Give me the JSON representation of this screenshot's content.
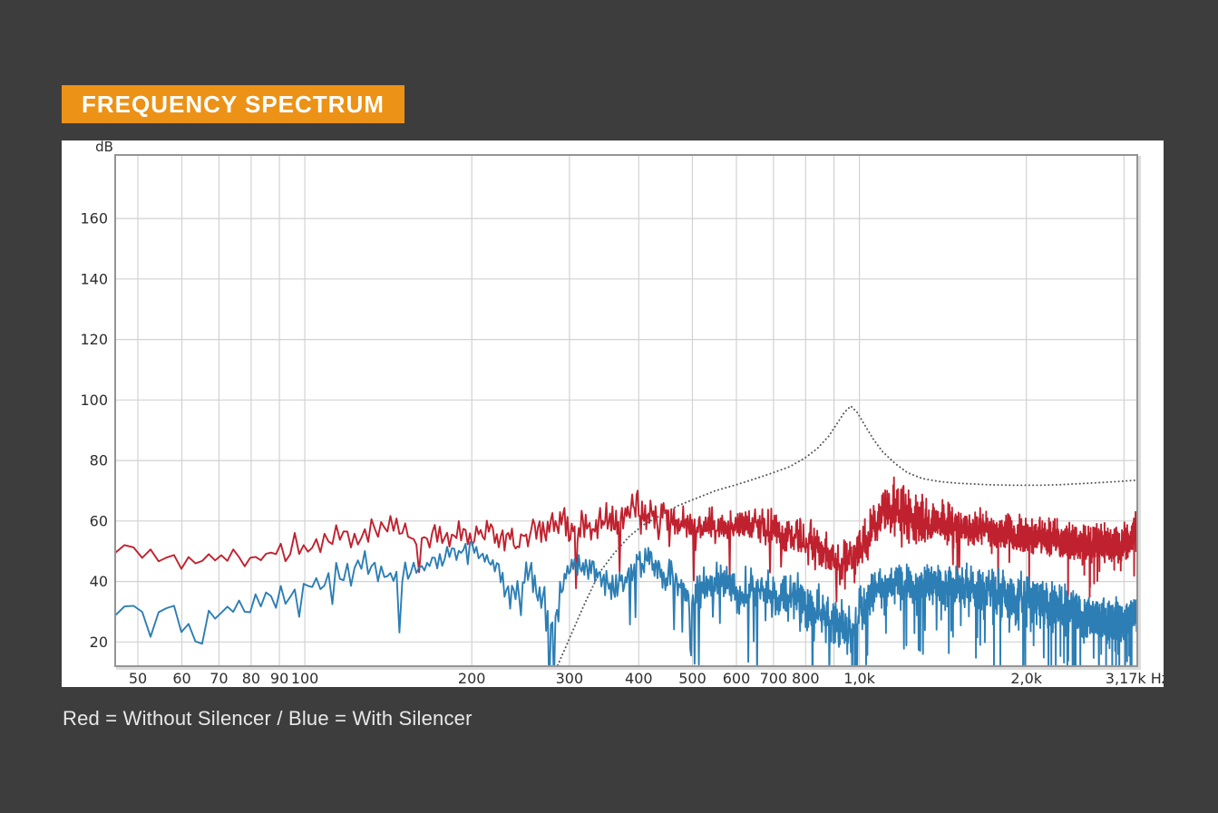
{
  "page": {
    "background": "#3d3d3d"
  },
  "header": {
    "title": "FREQUENCY SPECTRUM",
    "bg": "#ec9217",
    "text_color": "#ffffff"
  },
  "caption": {
    "text": "Red = Without Silencer / Blue = With Silencer"
  },
  "chart_data": {
    "type": "line",
    "title": "Frequency Spectrum",
    "grid": true,
    "legend_position": "below-as-caption",
    "colors": {
      "grid": "#d2d2d2",
      "spine": "#949494",
      "tick_text": "#2e2e2e",
      "plot_bg": "#ffffff"
    },
    "x_axis": {
      "scale": "log",
      "unit": "Hz",
      "min": 45.5,
      "max": 3170,
      "gridlines": [
        50,
        60,
        70,
        80,
        90,
        100,
        200,
        300,
        400,
        500,
        600,
        700,
        800,
        900,
        1000,
        2000,
        3000
      ],
      "ticks": [
        {
          "f": 50,
          "label": "50"
        },
        {
          "f": 60,
          "label": "60"
        },
        {
          "f": 70,
          "label": "70"
        },
        {
          "f": 80,
          "label": "80"
        },
        {
          "f": 90,
          "label": "90"
        },
        {
          "f": 100,
          "label": "100"
        },
        {
          "f": 200,
          "label": "200"
        },
        {
          "f": 300,
          "label": "300"
        },
        {
          "f": 400,
          "label": "400"
        },
        {
          "f": 500,
          "label": "500"
        },
        {
          "f": 600,
          "label": "600"
        },
        {
          "f": 700,
          "label": "700"
        },
        {
          "f": 800,
          "label": "800"
        },
        {
          "f": 1000,
          "label": "1,0k"
        },
        {
          "f": 2000,
          "label": "2,0k"
        },
        {
          "f": 3170,
          "label": "3,17k Hz"
        }
      ]
    },
    "y_axis": {
      "unit": "dB",
      "min": 12,
      "max": 181,
      "ticks": [
        20,
        40,
        60,
        80,
        100,
        120,
        140,
        160
      ]
    },
    "series": [
      {
        "name": "resonance-curve",
        "legend": "",
        "color": "#5b5b5b",
        "style": "dotted",
        "points": [
          [
            282,
            10
          ],
          [
            295,
            18
          ],
          [
            308,
            26
          ],
          [
            322,
            34
          ],
          [
            340,
            43
          ],
          [
            360,
            49
          ],
          [
            385,
            55
          ],
          [
            410,
            59
          ],
          [
            440,
            62
          ],
          [
            470,
            65
          ],
          [
            500,
            67
          ],
          [
            550,
            70
          ],
          [
            600,
            72
          ],
          [
            650,
            74
          ],
          [
            700,
            76
          ],
          [
            750,
            78
          ],
          [
            800,
            81
          ],
          [
            840,
            84
          ],
          [
            880,
            88
          ],
          [
            910,
            92
          ],
          [
            940,
            96
          ],
          [
            965,
            98
          ],
          [
            990,
            96
          ],
          [
            1020,
            92
          ],
          [
            1060,
            87
          ],
          [
            1100,
            83
          ],
          [
            1160,
            79
          ],
          [
            1220,
            76
          ],
          [
            1300,
            74
          ],
          [
            1400,
            73
          ],
          [
            1500,
            72.5
          ],
          [
            1700,
            72
          ],
          [
            1900,
            71.8
          ],
          [
            2100,
            71.8
          ],
          [
            2300,
            72
          ],
          [
            2600,
            72.5
          ],
          [
            2900,
            73
          ],
          [
            3170,
            73.5
          ]
        ]
      },
      {
        "name": "without-silencer",
        "legend": "Red = Without Silencer",
        "color": "#c0212e",
        "style": "noisy",
        "resolution_hz": 1.8,
        "noise": {
          "seed": 11,
          "sin_amp": 0.5,
          "sin_freq": 2.4,
          "walk_amp": 0.85,
          "spike_down_prob": 0.02,
          "spike_up_prob": 0.04
        },
        "envelope": [
          [
            45,
            51,
            2.5
          ],
          [
            50,
            50,
            3
          ],
          [
            55,
            48,
            3
          ],
          [
            60,
            47,
            3.5
          ],
          [
            65,
            47,
            4
          ],
          [
            70,
            48,
            3
          ],
          [
            75,
            47,
            3
          ],
          [
            80,
            48,
            4
          ],
          [
            85,
            49,
            4
          ],
          [
            90,
            50,
            4
          ],
          [
            95,
            51,
            4
          ],
          [
            100,
            52,
            4
          ],
          [
            110,
            55,
            4
          ],
          [
            120,
            56,
            4
          ],
          [
            130,
            55,
            4
          ],
          [
            140,
            57,
            4
          ],
          [
            150,
            57,
            4
          ],
          [
            160,
            53,
            4
          ],
          [
            170,
            54,
            3.5
          ],
          [
            180,
            55,
            3.5
          ],
          [
            190,
            56,
            3.5
          ],
          [
            200,
            56,
            4
          ],
          [
            215,
            57,
            4
          ],
          [
            230,
            54,
            4
          ],
          [
            240,
            52,
            4
          ],
          [
            255,
            55,
            4
          ],
          [
            270,
            58,
            5
          ],
          [
            285,
            60,
            5
          ],
          [
            300,
            57,
            5
          ],
          [
            320,
            57,
            5
          ],
          [
            340,
            60,
            5
          ],
          [
            360,
            61,
            5
          ],
          [
            380,
            62,
            5
          ],
          [
            400,
            63,
            6
          ],
          [
            420,
            64,
            6
          ],
          [
            440,
            62,
            5
          ],
          [
            460,
            60,
            5
          ],
          [
            480,
            59,
            5
          ],
          [
            500,
            58,
            5
          ],
          [
            530,
            59,
            5
          ],
          [
            560,
            58,
            5
          ],
          [
            600,
            59,
            5
          ],
          [
            640,
            58,
            5
          ],
          [
            680,
            57,
            5
          ],
          [
            720,
            56,
            5
          ],
          [
            760,
            55,
            5
          ],
          [
            800,
            53,
            6
          ],
          [
            850,
            50,
            6
          ],
          [
            900,
            47,
            6
          ],
          [
            950,
            46,
            6
          ],
          [
            1000,
            50,
            6
          ],
          [
            1050,
            56,
            6
          ],
          [
            1100,
            62,
            6
          ],
          [
            1150,
            64,
            8
          ],
          [
            1200,
            62,
            7
          ],
          [
            1250,
            60,
            6
          ],
          [
            1300,
            60,
            6
          ],
          [
            1400,
            59,
            6
          ],
          [
            1500,
            58,
            6
          ],
          [
            1600,
            57,
            5
          ],
          [
            1700,
            57,
            5
          ],
          [
            1800,
            56,
            5
          ],
          [
            1900,
            55,
            5
          ],
          [
            2000,
            55,
            5
          ],
          [
            2200,
            54,
            5
          ],
          [
            2400,
            53,
            5
          ],
          [
            2600,
            52,
            5
          ],
          [
            2800,
            52,
            5
          ],
          [
            3000,
            52,
            5
          ],
          [
            3100,
            54,
            5
          ],
          [
            3170,
            59,
            4
          ]
        ]
      },
      {
        "name": "with-silencer",
        "legend": "Blue = With Silencer",
        "color": "#2c7eb4",
        "style": "noisy",
        "resolution_hz": 1.8,
        "noise": {
          "seed": 23,
          "sin_amp": 0.5,
          "sin_freq": 2.4,
          "walk_amp": 0.85,
          "spike_down_prob": 0.045,
          "spike_up_prob": 0.0
        },
        "envelope": [
          [
            45,
            31,
            2.5
          ],
          [
            50,
            32,
            3
          ],
          [
            55,
            31,
            3
          ],
          [
            60,
            28,
            5
          ],
          [
            63,
            21,
            7
          ],
          [
            66,
            26,
            6
          ],
          [
            70,
            29,
            3
          ],
          [
            75,
            30,
            3
          ],
          [
            80,
            31,
            4
          ],
          [
            85,
            33,
            4
          ],
          [
            90,
            35,
            4
          ],
          [
            95,
            36,
            4
          ],
          [
            100,
            38,
            5
          ],
          [
            110,
            41,
            5
          ],
          [
            120,
            44,
            5
          ],
          [
            130,
            45,
            5
          ],
          [
            140,
            39,
            7
          ],
          [
            150,
            43,
            5
          ],
          [
            160,
            45,
            4
          ],
          [
            170,
            46,
            4
          ],
          [
            180,
            48,
            4
          ],
          [
            190,
            50,
            3
          ],
          [
            200,
            51,
            3
          ],
          [
            210,
            50,
            3
          ],
          [
            220,
            45,
            5
          ],
          [
            230,
            40,
            6
          ],
          [
            240,
            38,
            6
          ],
          [
            255,
            42,
            5
          ],
          [
            270,
            34,
            8
          ],
          [
            280,
            23,
            9
          ],
          [
            290,
            38,
            6
          ],
          [
            300,
            45,
            5
          ],
          [
            310,
            47,
            4
          ],
          [
            320,
            46,
            4
          ],
          [
            330,
            44,
            5
          ],
          [
            345,
            40,
            6
          ],
          [
            360,
            38,
            6
          ],
          [
            380,
            42,
            5
          ],
          [
            400,
            45,
            5
          ],
          [
            420,
            46,
            5
          ],
          [
            440,
            44,
            5
          ],
          [
            460,
            40,
            6
          ],
          [
            480,
            38,
            6
          ],
          [
            500,
            34,
            8
          ],
          [
            520,
            38,
            6
          ],
          [
            540,
            40,
            6
          ],
          [
            560,
            42,
            6
          ],
          [
            580,
            40,
            6
          ],
          [
            600,
            37,
            7
          ],
          [
            630,
            35,
            8
          ],
          [
            660,
            36,
            7
          ],
          [
            700,
            34,
            8
          ],
          [
            740,
            35,
            8
          ],
          [
            780,
            33,
            9
          ],
          [
            820,
            32,
            9
          ],
          [
            860,
            30,
            9
          ],
          [
            900,
            27,
            9
          ],
          [
            940,
            22,
            8
          ],
          [
            970,
            24,
            8
          ],
          [
            1000,
            30,
            8
          ],
          [
            1050,
            35,
            7
          ],
          [
            1100,
            38,
            6
          ],
          [
            1150,
            40,
            6
          ],
          [
            1200,
            40,
            6
          ],
          [
            1300,
            39,
            6
          ],
          [
            1400,
            40,
            6
          ],
          [
            1500,
            39,
            6
          ],
          [
            1600,
            38,
            7
          ],
          [
            1700,
            37,
            7
          ],
          [
            1800,
            36,
            7
          ],
          [
            1900,
            34,
            7
          ],
          [
            2000,
            35,
            7
          ],
          [
            2200,
            32,
            7
          ],
          [
            2400,
            30,
            7
          ],
          [
            2600,
            28,
            6
          ],
          [
            2800,
            27,
            6
          ],
          [
            3000,
            27,
            6
          ],
          [
            3100,
            28,
            5
          ],
          [
            3170,
            29,
            5
          ]
        ]
      }
    ]
  }
}
